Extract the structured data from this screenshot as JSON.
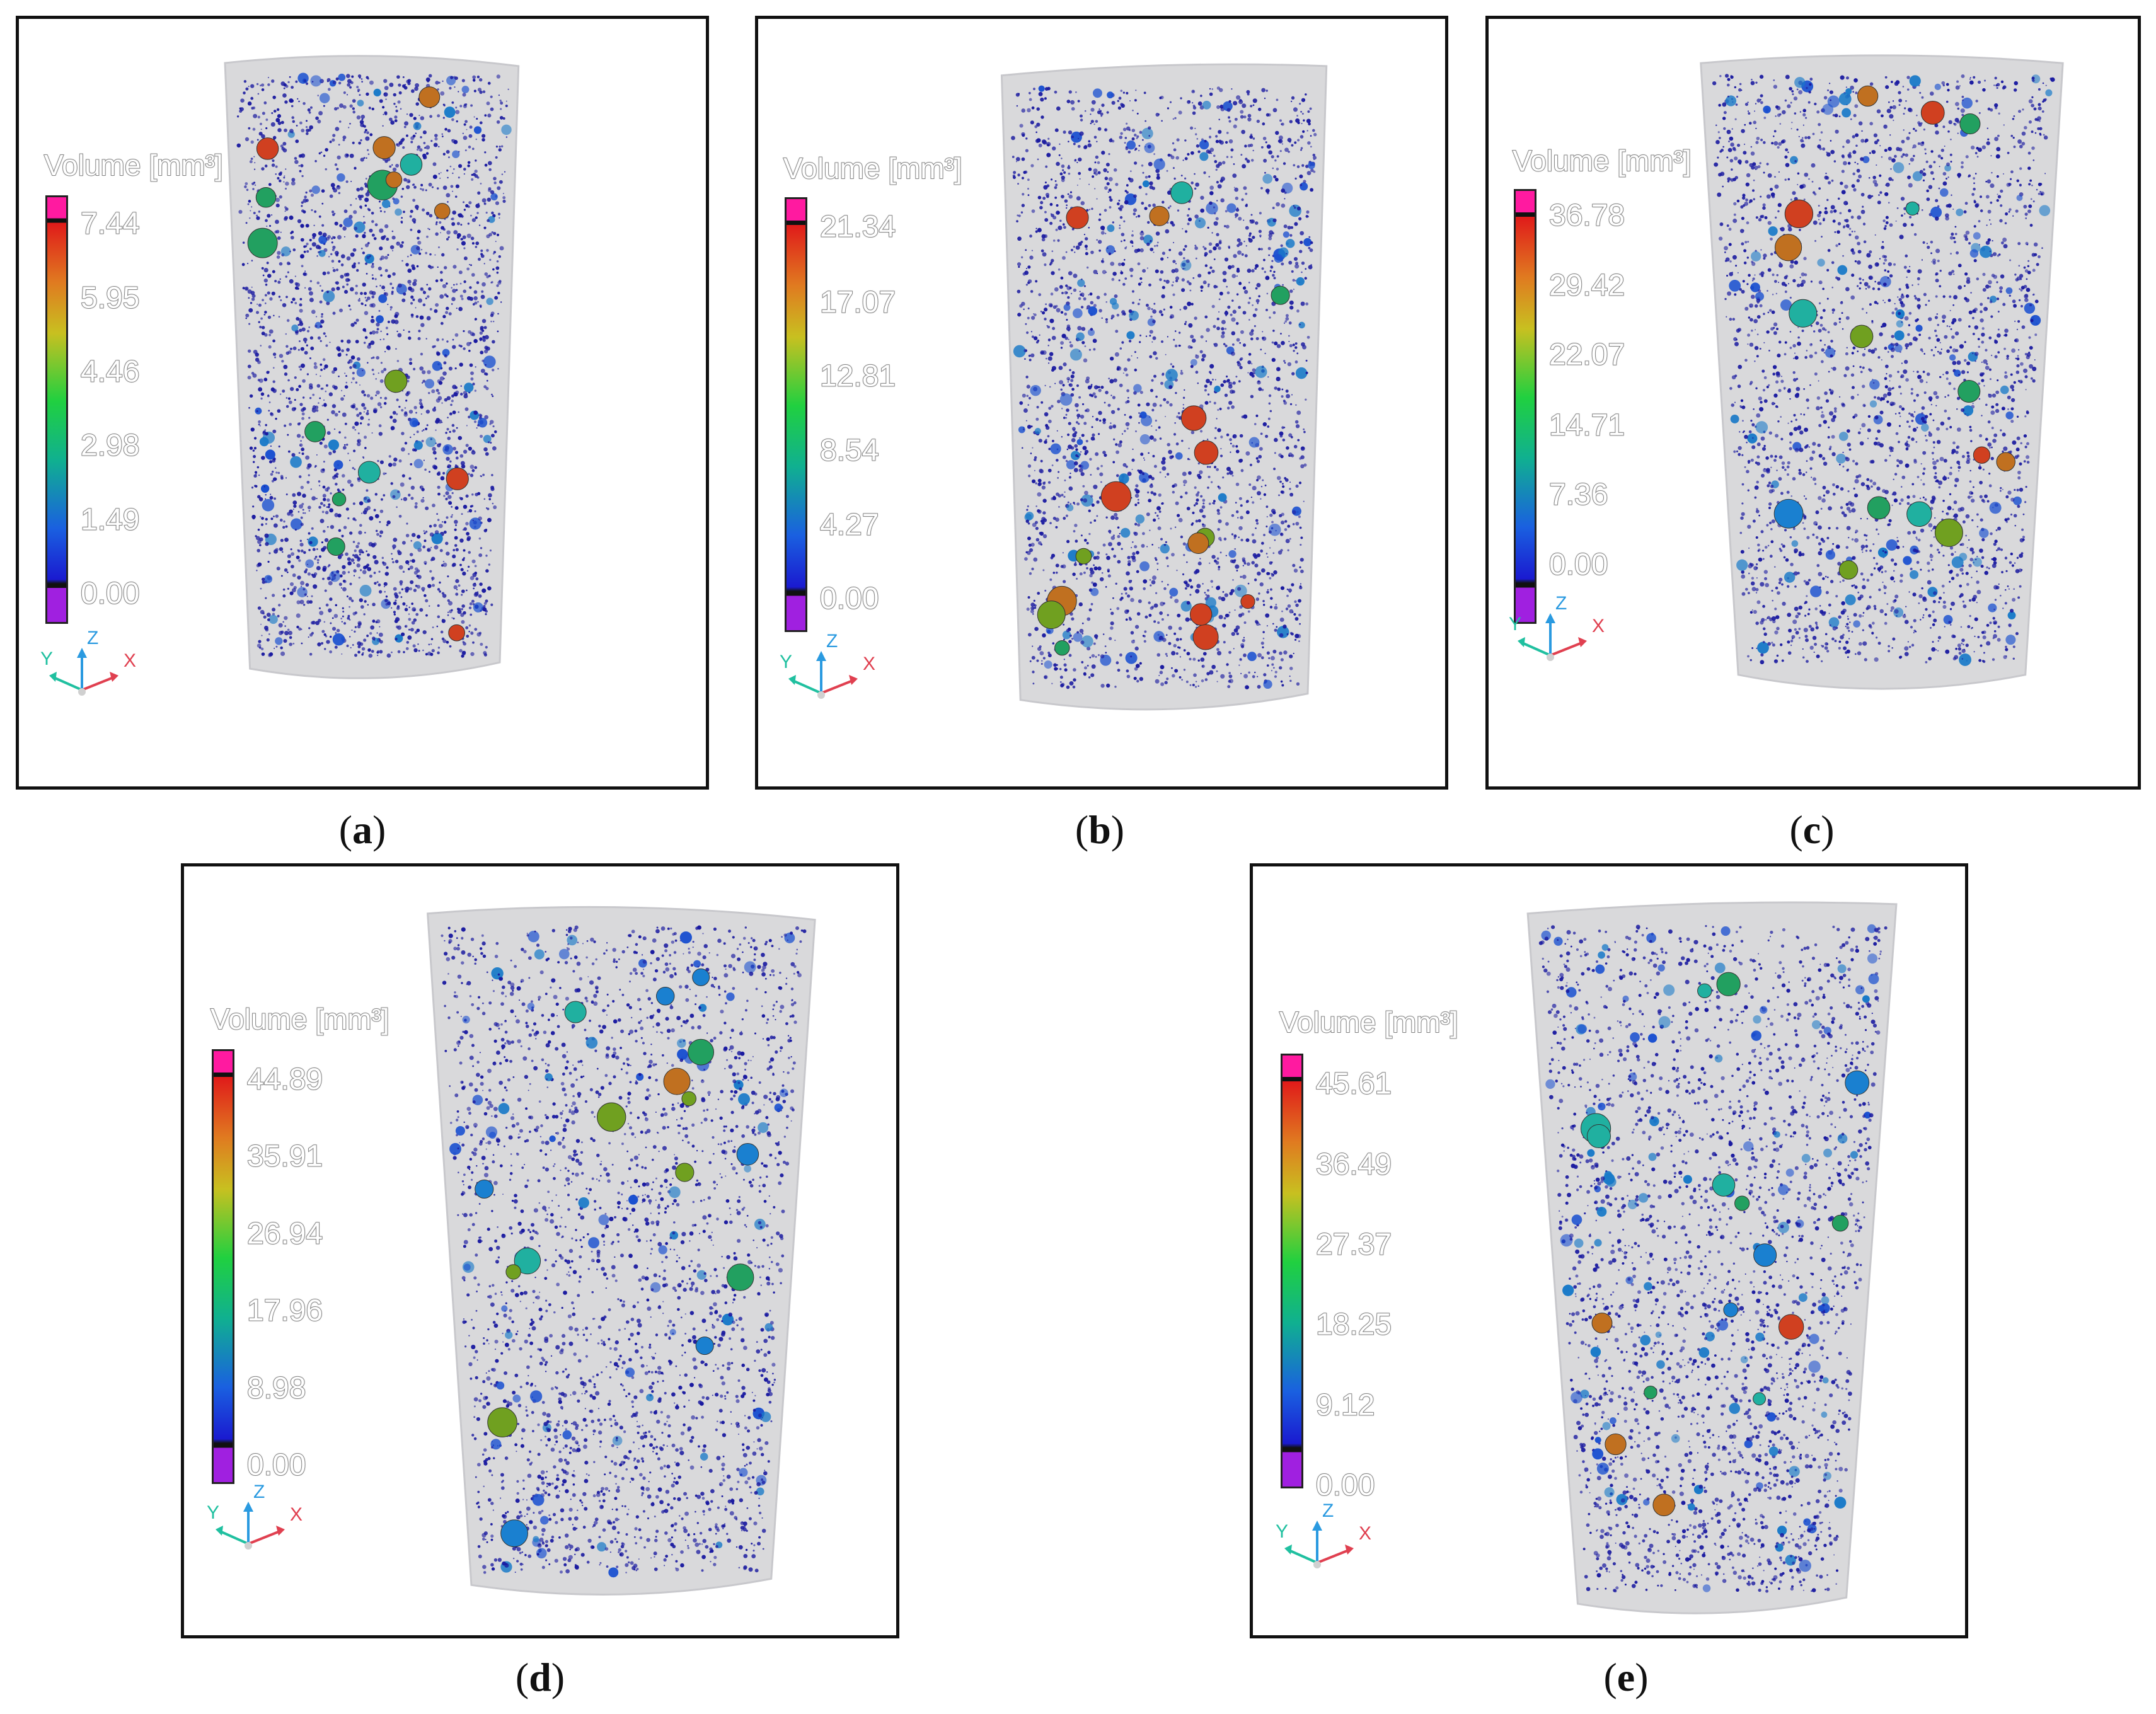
{
  "legend_title": "Volume [mm³]",
  "axis_labels": {
    "x": "X",
    "y": "Y",
    "z": "Z"
  },
  "colors": {
    "pore": "#1a1aa0",
    "specimen": "#d9d9db",
    "bar_top": "#ff1aa0",
    "bar_bottom": "#a020e0"
  },
  "panels": [
    {
      "id": "a",
      "caption": "a",
      "ticks": [
        "7.44",
        "5.95",
        "4.46",
        "2.98",
        "1.49",
        "0.00"
      ]
    },
    {
      "id": "b",
      "caption": "b",
      "ticks": [
        "21.34",
        "17.07",
        "12.81",
        "8.54",
        "4.27",
        "0.00"
      ]
    },
    {
      "id": "c",
      "caption": "c",
      "ticks": [
        "36.78",
        "29.42",
        "22.07",
        "14.71",
        "7.36",
        "0.00"
      ]
    },
    {
      "id": "d",
      "caption": "d",
      "ticks": [
        "44.89",
        "35.91",
        "26.94",
        "17.96",
        "8.98",
        "0.00"
      ]
    },
    {
      "id": "e",
      "caption": "e",
      "ticks": [
        "45.61",
        "36.49",
        "27.37",
        "18.25",
        "9.12",
        "0.00"
      ]
    }
  ]
}
